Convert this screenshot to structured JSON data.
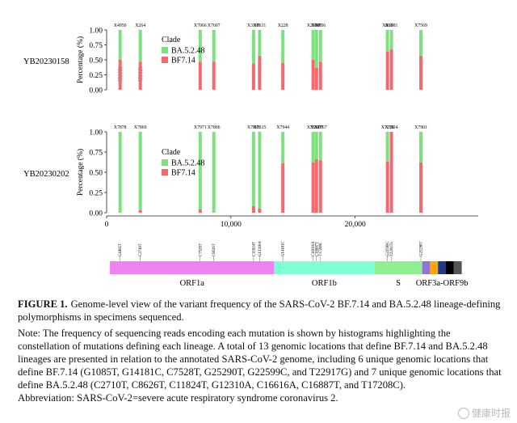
{
  "chart_data": [
    {
      "type": "bar",
      "stacked": true,
      "sample": "YB20230158",
      "ylabel": "Percentage (%)",
      "yticks": [
        "0.00",
        "0.25",
        "0.50",
        "0.75",
        "1.00"
      ],
      "ylim": [
        0,
        1
      ],
      "legend": {
        "title": "Clade",
        "placement": "left-middle",
        "entries": [
          {
            "label": "BA.5.2.48",
            "color": "#7ee07e"
          },
          {
            "label": "BF7.14",
            "color": "#f26a70"
          }
        ]
      },
      "bars": [
        {
          "label": "X4950",
          "x": 1085,
          "BF7.14": 0.5,
          "BA.5.2.48": 0.5,
          "gap": [
            0.15,
            0.37
          ]
        },
        {
          "label": "X264",
          "x": 2710,
          "BF7.14": 0.47,
          "BA.5.2.48": 0.53,
          "gap": [
            0.15,
            0.37
          ]
        },
        {
          "label": "X7066",
          "x": 7528,
          "BF7.14": 0.47,
          "BA.5.2.48": 0.53
        },
        {
          "label": "X7607",
          "x": 8626,
          "BF7.14": 0.47,
          "BA.5.2.48": 0.53
        },
        {
          "label": "X3198",
          "x": 11824,
          "BF7.14": 0.44,
          "BA.5.2.48": 0.56
        },
        {
          "label": "X7631",
          "x": 12310,
          "BF7.14": 0.57,
          "BA.5.2.48": 0.43
        },
        {
          "label": "X228",
          "x": 14181,
          "BF7.14": 0.45,
          "BA.5.2.48": 0.55
        },
        {
          "label": "X2069",
          "x": 16616,
          "BF7.14": 0.5,
          "BA.5.2.48": 0.5
        },
        {
          "label": "X790",
          "x": 16887,
          "BF7.14": 0.37,
          "BA.5.2.48": 0.63
        },
        {
          "label": "X736",
          "x": 17208,
          "BF7.14": 0.47,
          "BA.5.2.48": 0.53
        },
        {
          "label": "X863",
          "x": 22599,
          "BF7.14": 0.64,
          "BA.5.2.48": 0.36
        },
        {
          "label": "X3081",
          "x": 22917,
          "BF7.14": 0.68,
          "BA.5.2.48": 0.32
        },
        {
          "label": "X7569",
          "x": 25290,
          "BF7.14": 0.57,
          "BA.5.2.48": 0.43
        }
      ]
    },
    {
      "type": "bar",
      "stacked": true,
      "sample": "YB20230202",
      "ylabel": "Percentage (%)",
      "yticks": [
        "0.00",
        "0.25",
        "0.50",
        "0.75",
        "1.00"
      ],
      "ylim": [
        0,
        1
      ],
      "xticks": [
        "0",
        "10,000",
        "20,000"
      ],
      "xticks_values": [
        0,
        10000,
        20000
      ],
      "xlim": [
        0,
        29903
      ],
      "legend": {
        "title": "Clade",
        "placement": "left-middle",
        "entries": [
          {
            "label": "BA.5.2.48",
            "color": "#7ee07e"
          },
          {
            "label": "BF7.14",
            "color": "#f26a70"
          }
        ]
      },
      "bars": [
        {
          "label": "X7878",
          "x": 1085,
          "BF7.14": 0.0,
          "BA.5.2.48": 1.0
        },
        {
          "label": "X7869",
          "x": 2710,
          "BF7.14": 0.03,
          "BA.5.2.48": 0.97
        },
        {
          "label": "X7971",
          "x": 7528,
          "BF7.14": 0.04,
          "BA.5.2.48": 0.96
        },
        {
          "label": "X7806",
          "x": 8626,
          "BF7.14": 0.0,
          "BA.5.2.48": 1.0
        },
        {
          "label": "X7891",
          "x": 11824,
          "BF7.14": 0.08,
          "BA.5.2.48": 0.92
        },
        {
          "label": "X7915",
          "x": 12310,
          "BF7.14": 0.05,
          "BA.5.2.48": 0.95
        },
        {
          "label": "X7944",
          "x": 14181,
          "BF7.14": 0.61,
          "BA.5.2.48": 0.39
        },
        {
          "label": "X7631",
          "x": 16616,
          "BF7.14": 0.62,
          "BA.5.2.48": 0.38
        },
        {
          "label": "X7907",
          "x": 16887,
          "BF7.14": 0.66,
          "BA.5.2.48": 0.34
        },
        {
          "label": "X7867",
          "x": 17208,
          "BF7.14": 0.65,
          "BA.5.2.48": 0.35
        },
        {
          "label": "X7210",
          "x": 22599,
          "BF7.14": 0.63,
          "BA.5.2.48": 0.37
        },
        {
          "label": "X7924",
          "x": 22917,
          "BF7.14": 1.0,
          "BA.5.2.48": 0.0
        },
        {
          "label": "X7901",
          "x": 25290,
          "BF7.14": 0.62,
          "BA.5.2.48": 0.38
        }
      ]
    }
  ],
  "genome_map": {
    "mutations": [
      "G1085T",
      "C2710T",
      "C7528T",
      "C8626T",
      "C11824T",
      "G12310A",
      "G14181C",
      "C16616A",
      "C16887T",
      "T17208C",
      "G22599C",
      "T22917G",
      "G25290T"
    ],
    "genes": [
      {
        "name": "ORF1a",
        "start": 266,
        "end": 13483,
        "color": "#ee82ee"
      },
      {
        "name": "ORF1b",
        "start": 13468,
        "end": 21555,
        "color": "#7fffd4"
      },
      {
        "name": "S",
        "start": 21563,
        "end": 25384,
        "color": "#90ee90"
      },
      {
        "name": "ORF3a-ORF9b",
        "start": 25393,
        "end": 28577,
        "segments": [
          "#9370db",
          "#ffa500",
          "#1e3a8a",
          "#000000",
          "#555555"
        ]
      }
    ]
  },
  "caption": {
    "label": "FIGURE 1.",
    "title": "Genome-level view of the variant frequency of the SARS-CoV-2 BF.7.14 and BA.5.2.48 lineage-defining polymorphisms in specimens sequenced.",
    "note": "Note: The frequency of sequencing reads encoding each mutation is shown by histograms highlighting the constellation of mutations defining each lineage. A total of 13 genomic locations that define BF.7.14 and BA.5.2.48 lineages are presented in relation to the annotated SARS-CoV-2 genome, including 6 unique genomic locations that define BF.7.14 (G1085T, G14181C, C7528T, G25290T, G22599C, and T22917G) and 7 unique genomic locations that define BA.5.2.48 (C2710T, C8626T, C11824T, G12310A, C16616A, C16887T, and T17208C).",
    "abbreviation": "Abbreviation: SARS-CoV-2=severe acute respiratory syndrome coronavirus 2."
  },
  "watermark": "健康时报"
}
